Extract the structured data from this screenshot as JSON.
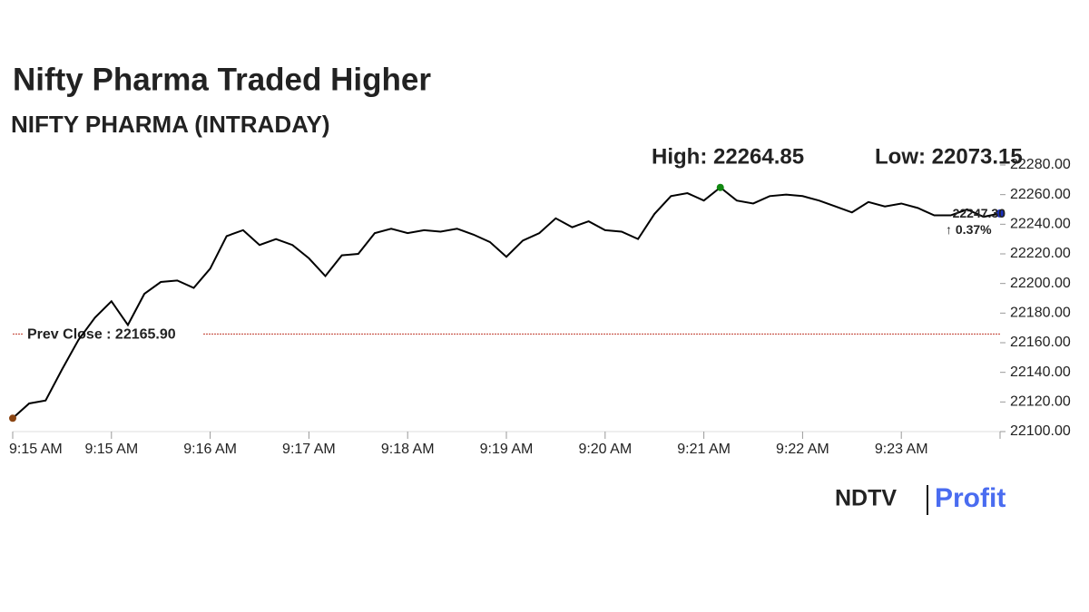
{
  "chart_data": {
    "type": "line",
    "title": "Nifty Pharma Traded Higher",
    "subtitle": "NIFTY PHARMA (INTRADAY)",
    "high_label": "High: 22264.85",
    "low_label": "Low: 22073.15",
    "change_label": "↑ 0.37%",
    "prev_close": {
      "value": 22165.9,
      "label": "Prev Close : 22165.90"
    },
    "brand": [
      "NDTV",
      "Profit"
    ],
    "categories": [
      "9:15 AM",
      null,
      null,
      null,
      null,
      null,
      "9:15 AM",
      null,
      null,
      null,
      null,
      null,
      "9:16 AM",
      null,
      null,
      null,
      null,
      null,
      "9:17 AM",
      null,
      null,
      null,
      null,
      null,
      "9:18 AM",
      null,
      null,
      null,
      null,
      null,
      "9:19 AM",
      null,
      null,
      null,
      null,
      null,
      "9:20 AM",
      null,
      null,
      null,
      null,
      null,
      "9:21 AM",
      null,
      null,
      null,
      null,
      null,
      "9:22 AM",
      null,
      null,
      null,
      null,
      null,
      "9:23 AM",
      null,
      null,
      null,
      null,
      null,
      null
    ],
    "series": [
      {
        "name": "NIFTY PHARMA",
        "color": "#000000",
        "values": [
          22109,
          22119,
          22121,
          22142,
          22162,
          22177,
          22188,
          22172,
          22193,
          22201,
          22202,
          22197,
          22210,
          22232,
          22236,
          22226,
          22230,
          22226,
          22217,
          22205,
          22219,
          22220,
          22234,
          22237,
          22234,
          22236,
          22235,
          22237,
          22233,
          22228,
          22218,
          22229,
          22234,
          22244,
          22238,
          22242,
          22236,
          22235,
          22230,
          22247,
          22259,
          22261,
          22256,
          22264.85,
          22256,
          22254,
          22259,
          22260,
          22259,
          22256,
          22252,
          22248,
          22255,
          22252,
          22254,
          22251,
          22246,
          22246,
          22250,
          22245,
          22247.3
        ],
        "value_labels": [
          null,
          null,
          null,
          null,
          null,
          null,
          null,
          null,
          null,
          null,
          null,
          null,
          null,
          null,
          null,
          null,
          null,
          null,
          null,
          null,
          null,
          null,
          null,
          null,
          null,
          null,
          null,
          null,
          null,
          null,
          null,
          null,
          null,
          null,
          null,
          null,
          null,
          null,
          null,
          null,
          null,
          null,
          null,
          null,
          null,
          null,
          null,
          null,
          null,
          null,
          null,
          null,
          null,
          null,
          null,
          null,
          null,
          null,
          null,
          null,
          "22247.30"
        ]
      }
    ],
    "ylim": [
      22100,
      22280
    ],
    "yticks": [
      {
        "value": 22100,
        "label": "22100.00"
      },
      {
        "value": 22120,
        "label": "22120.00"
      },
      {
        "value": 22140,
        "label": "22140.00"
      },
      {
        "value": 22160,
        "label": "22160.00"
      },
      {
        "value": 22180,
        "label": "22180.00"
      },
      {
        "value": 22200,
        "label": "22200.00"
      },
      {
        "value": 22220,
        "label": "22220.00"
      },
      {
        "value": 22240,
        "label": "22240.00"
      },
      {
        "value": 22260,
        "label": "22260.00"
      },
      {
        "value": 22280,
        "label": "22280.00"
      }
    ],
    "start_color": "#8b4513",
    "high_color": "#118811",
    "last_color": "#1a2fbf",
    "prev_close_color": "#c0392b",
    "change_color": "#1a7a1a"
  }
}
